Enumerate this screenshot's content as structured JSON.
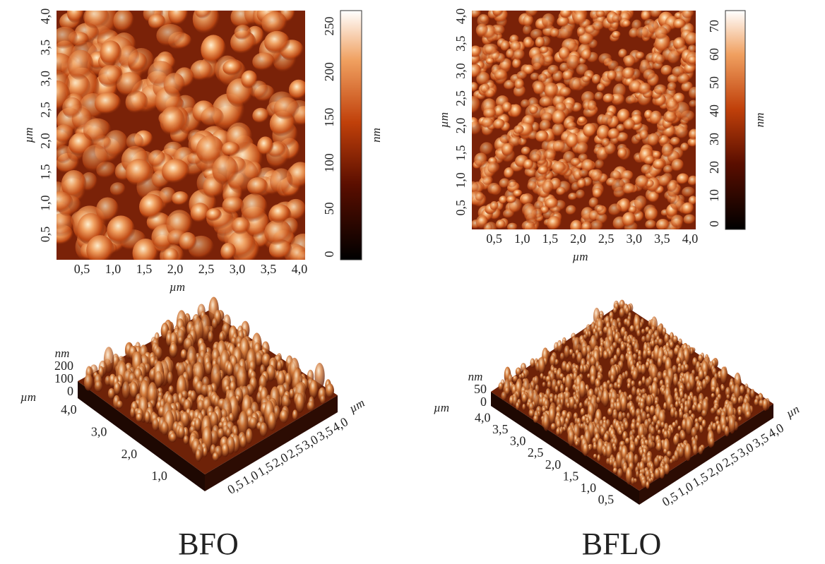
{
  "panels": [
    {
      "caption": "BFO",
      "map": {
        "x_label": "µm",
        "y_label": "µm",
        "x_ticks": [
          "0,5",
          "1,0",
          "1,5",
          "2,0",
          "2,5",
          "3,0",
          "3,5",
          "4,0"
        ],
        "y_ticks": [
          "0,5",
          "1,0",
          "1,5",
          "2,0",
          "2,5",
          "3,0",
          "3,5",
          "4,0"
        ],
        "colorbar_label": "nm",
        "colorbar_ticks": [
          "0",
          "50",
          "100",
          "150",
          "200",
          "250"
        ]
      },
      "surface": {
        "z_label": "nm",
        "z_ticks": [
          "200",
          "100",
          "0"
        ],
        "left_axis_label": "µm",
        "left_ticks": [
          "4,0",
          "3,0",
          "2,0",
          "1,0"
        ],
        "right_axis_label": "µm",
        "right_ticks": [
          "0,5",
          "1,0",
          "1,5",
          "2,0",
          "2,5",
          "3,0",
          "3,5",
          "4,0"
        ]
      }
    },
    {
      "caption": "BFLO",
      "map": {
        "x_label": "µm",
        "y_label": "µm",
        "x_ticks": [
          "0,5",
          "1,0",
          "1,5",
          "2,0",
          "2,5",
          "3,0",
          "3,5",
          "4,0"
        ],
        "y_ticks": [
          "0,5",
          "1,0",
          "1,5",
          "2,0",
          "2,5",
          "3,0",
          "3,5",
          "4,0"
        ],
        "colorbar_label": "nm",
        "colorbar_ticks": [
          "0",
          "10",
          "20",
          "30",
          "40",
          "50",
          "60",
          "70"
        ]
      },
      "surface": {
        "z_label": "nm",
        "z_ticks": [
          "50",
          "0"
        ],
        "left_axis_label": "µm",
        "left_ticks": [
          "4,0",
          "3,5",
          "3,0",
          "2,5",
          "2,0",
          "1,5",
          "1,0",
          "0,5"
        ],
        "right_axis_label": "µn",
        "right_ticks": [
          "0,5",
          "1,0",
          "1,5",
          "2,0",
          "2,5",
          "3,0",
          "3,5",
          "4,0"
        ]
      }
    }
  ]
}
